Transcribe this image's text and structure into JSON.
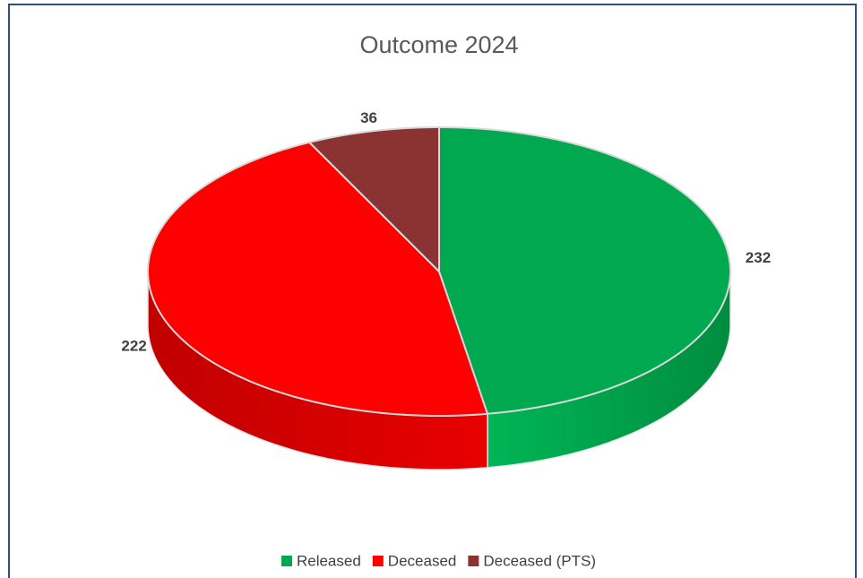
{
  "chart_data": {
    "type": "pie3d",
    "title": "Outcome 2024",
    "categories": [
      "Released",
      "Deceased",
      "Deceased (PTS)"
    ],
    "values": [
      232,
      222,
      36
    ],
    "colors": [
      "#00a84f",
      "#ff0000",
      "#8b3232"
    ],
    "legend": "bottom"
  }
}
